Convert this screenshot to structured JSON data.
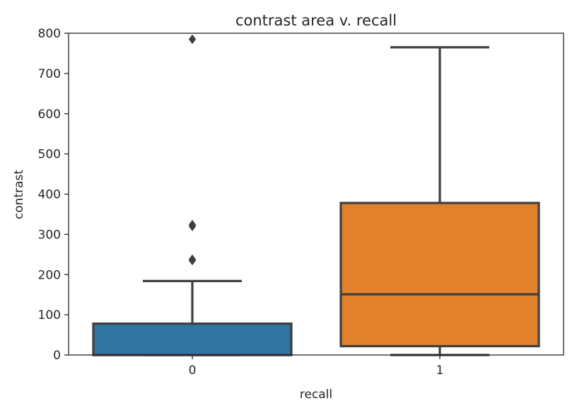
{
  "chart_data": {
    "type": "box",
    "title": "contrast area v. recall",
    "xlabel": "recall",
    "ylabel": "contrast",
    "ylim": [
      0,
      800
    ],
    "yticks": [
      0,
      100,
      200,
      300,
      400,
      500,
      600,
      700,
      800
    ],
    "categories": [
      "0",
      "1"
    ],
    "boxes": [
      {
        "category": "0",
        "color": "#3274a1",
        "whisker_low": 0,
        "q1": 0,
        "median": 0,
        "q3": 78,
        "whisker_high": 184,
        "outliers": [
          235,
          238,
          320,
          324,
          785
        ]
      },
      {
        "category": "1",
        "color": "#e1812c",
        "whisker_low": 0,
        "q1": 22,
        "median": 151,
        "q3": 378,
        "whisker_high": 765,
        "outliers": []
      }
    ],
    "grid": false,
    "legend": "none"
  }
}
